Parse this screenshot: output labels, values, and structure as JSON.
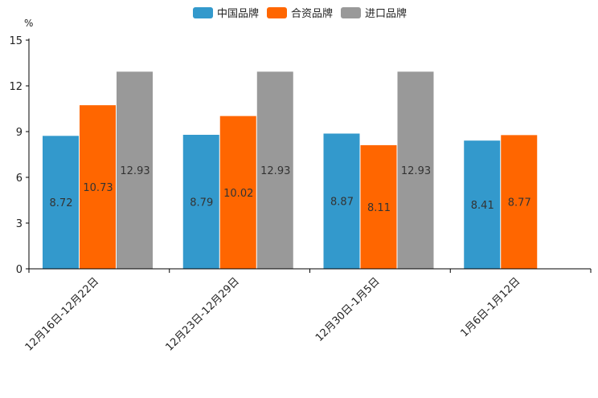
{
  "chart_data": {
    "type": "bar",
    "unit": "%",
    "categories": [
      "12月16日-12月22日",
      "12月23日-12月29日",
      "12月30日-1月5日",
      "1月6日-1月12日"
    ],
    "series": [
      {
        "name": "中国品牌",
        "color": "#3399cc",
        "values": [
          8.72,
          8.79,
          8.87,
          8.41
        ],
        "labels": [
          "8.72",
          "8.79",
          "8.87",
          "8.41"
        ]
      },
      {
        "name": "合资品牌",
        "color": "#ff6600",
        "values": [
          10.73,
          10.02,
          8.11,
          8.77
        ],
        "labels": [
          "10.73",
          "10.02",
          "8.11",
          "8.77"
        ]
      },
      {
        "name": "进口品牌",
        "color": "#999999",
        "values": [
          12.93,
          12.93,
          12.93,
          null
        ],
        "labels": [
          "12.93",
          "12.93",
          "12.93",
          null
        ]
      }
    ],
    "yticks": [
      0,
      3,
      6,
      9,
      12,
      15
    ],
    "ytick_labels": [
      "0",
      "3",
      "6",
      "9",
      "12",
      "15"
    ],
    "ylim": [
      0,
      15
    ],
    "legend_position": "top-center",
    "grid": false
  }
}
